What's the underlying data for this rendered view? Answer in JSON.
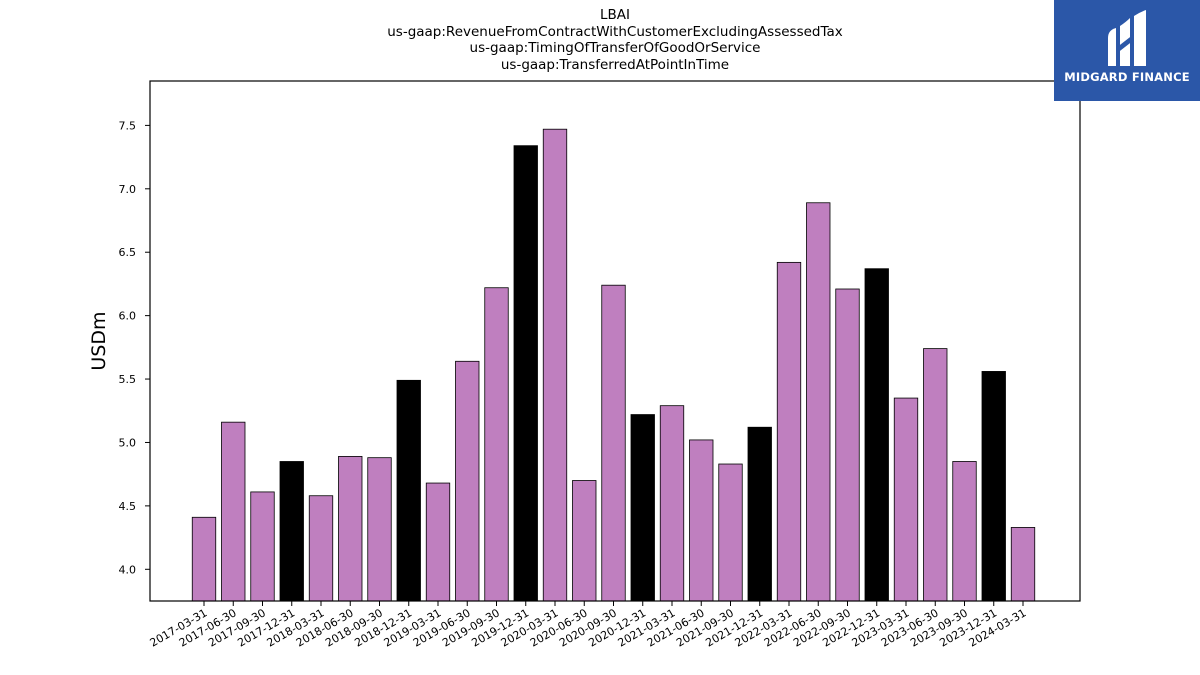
{
  "chart_data": {
    "type": "bar",
    "title_lines": [
      "LBAI",
      "us-gaap:RevenueFromContractWithCustomerExcludingAssessedTax",
      "us-gaap:TimingOfTransferOfGoodOrService",
      "us-gaap:TransferredAtPointInTime"
    ],
    "ylabel": "USDm",
    "xlabel": "",
    "ylim": [
      3.75,
      7.85
    ],
    "yticks": [
      "4.0",
      "4.5",
      "5.0",
      "5.5",
      "6.0",
      "6.5",
      "7.0",
      "7.5"
    ],
    "categories": [
      "2017-03-31",
      "2017-06-30",
      "2017-09-30",
      "2017-12-31",
      "2018-03-31",
      "2018-06-30",
      "2018-09-30",
      "2018-12-31",
      "2019-03-31",
      "2019-06-30",
      "2019-09-30",
      "2019-12-31",
      "2020-03-31",
      "2020-06-30",
      "2020-09-30",
      "2020-12-31",
      "2021-03-31",
      "2021-06-30",
      "2021-09-30",
      "2021-12-31",
      "2022-03-31",
      "2022-06-30",
      "2022-09-30",
      "2022-12-31",
      "2023-03-31",
      "2023-06-30",
      "2023-09-30",
      "2023-12-31",
      "2024-03-31"
    ],
    "values": [
      4.41,
      5.16,
      4.61,
      4.85,
      4.58,
      4.89,
      4.88,
      5.49,
      4.68,
      5.64,
      6.22,
      7.34,
      7.47,
      4.7,
      6.24,
      5.22,
      5.29,
      5.02,
      4.83,
      5.12,
      6.42,
      6.89,
      6.21,
      6.37,
      5.35,
      5.74,
      4.85,
      5.56,
      4.33
    ],
    "colors": {
      "quarter": "#bf7fbf",
      "year_end": "#000000",
      "edge": "#000000"
    },
    "bar_color_pattern": [
      "quarter",
      "quarter",
      "quarter",
      "year_end",
      "quarter",
      "quarter",
      "quarter",
      "year_end",
      "quarter",
      "quarter",
      "quarter",
      "year_end",
      "quarter",
      "quarter",
      "quarter",
      "year_end",
      "quarter",
      "quarter",
      "quarter",
      "year_end",
      "quarter",
      "quarter",
      "quarter",
      "year_end",
      "quarter",
      "quarter",
      "quarter",
      "year_end",
      "quarter"
    ],
    "grid": false,
    "legend": "none"
  },
  "logo": {
    "text": "MIDGARD FINANCE",
    "background": "#2b57a8"
  }
}
